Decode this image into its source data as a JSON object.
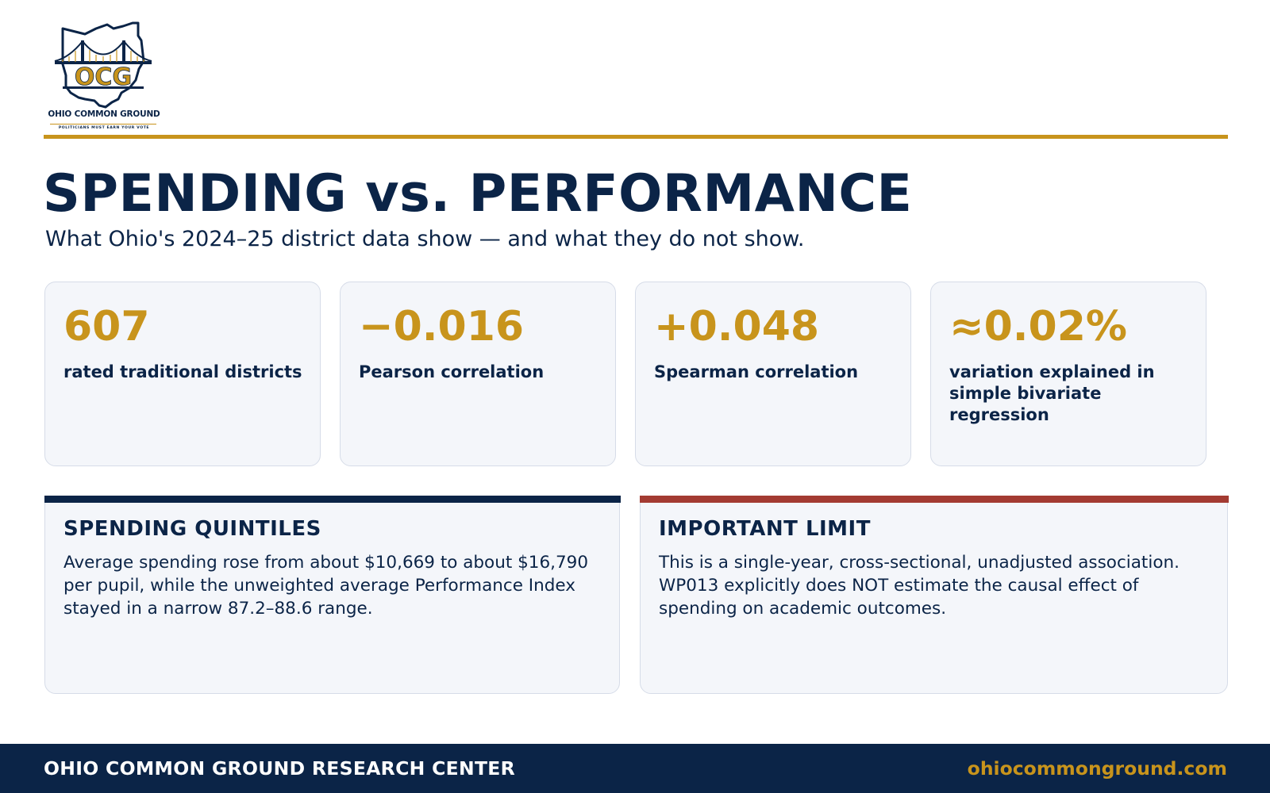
{
  "brand": {
    "logo_abbrev": "OCG",
    "logo_name": "OHIO COMMON GROUND",
    "logo_tagline": "POLITICIANS MUST EARN YOUR VOTE",
    "colors": {
      "navy": "#0b2447",
      "gold": "#c8941c",
      "red": "#a33b32",
      "card_bg": "#f4f6fa"
    }
  },
  "header": {
    "title": "SPENDING vs. PERFORMANCE",
    "subtitle": "What Ohio's 2024–25 district data show — and what they do not show."
  },
  "stats": [
    {
      "value": "607",
      "label": "rated traditional districts"
    },
    {
      "value": "−0.016",
      "label": "Pearson correlation"
    },
    {
      "value": "+0.048",
      "label": "Spearman correlation"
    },
    {
      "value": "≈0.02%",
      "label": "variation explained in simple bivariate regression"
    }
  ],
  "panels": [
    {
      "title": "SPENDING QUINTILES",
      "body": "Average spending rose from about $10,669 to about $16,790 per pupil, while the unweighted average Performance Index stayed in a narrow 87.2–88.6 range.",
      "accent": "#0b2447"
    },
    {
      "title": "IMPORTANT LIMIT",
      "body": "This is a single-year, cross-sectional, unadjusted association. WP013 explicitly does NOT estimate the causal effect of spending on academic outcomes.",
      "accent": "#a33b32"
    }
  ],
  "footer": {
    "org": "OHIO COMMON GROUND RESEARCH CENTER",
    "url": "ohiocommonground.com"
  }
}
